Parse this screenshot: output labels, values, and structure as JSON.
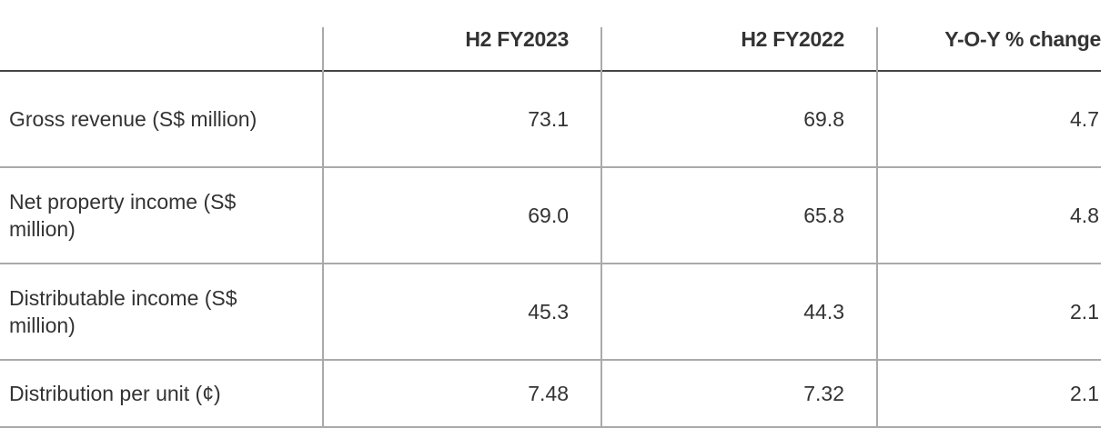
{
  "table": {
    "headers": [
      "",
      "H2 FY2023",
      "H2 FY2022",
      "Y-O-Y % change"
    ],
    "rows": [
      {
        "label": "Gross revenue (S$ million)",
        "values": [
          "73.1",
          "69.8",
          "4.7"
        ]
      },
      {
        "label": "Net property income (S$ million)",
        "values": [
          "69.0",
          "65.8",
          "4.8"
        ]
      },
      {
        "label": "Distributable income (S$ million)",
        "values": [
          "45.3",
          "44.3",
          "2.1"
        ]
      },
      {
        "label": "Distribution per unit (¢)",
        "values": [
          "7.48",
          "7.32",
          "2.1"
        ]
      }
    ]
  }
}
